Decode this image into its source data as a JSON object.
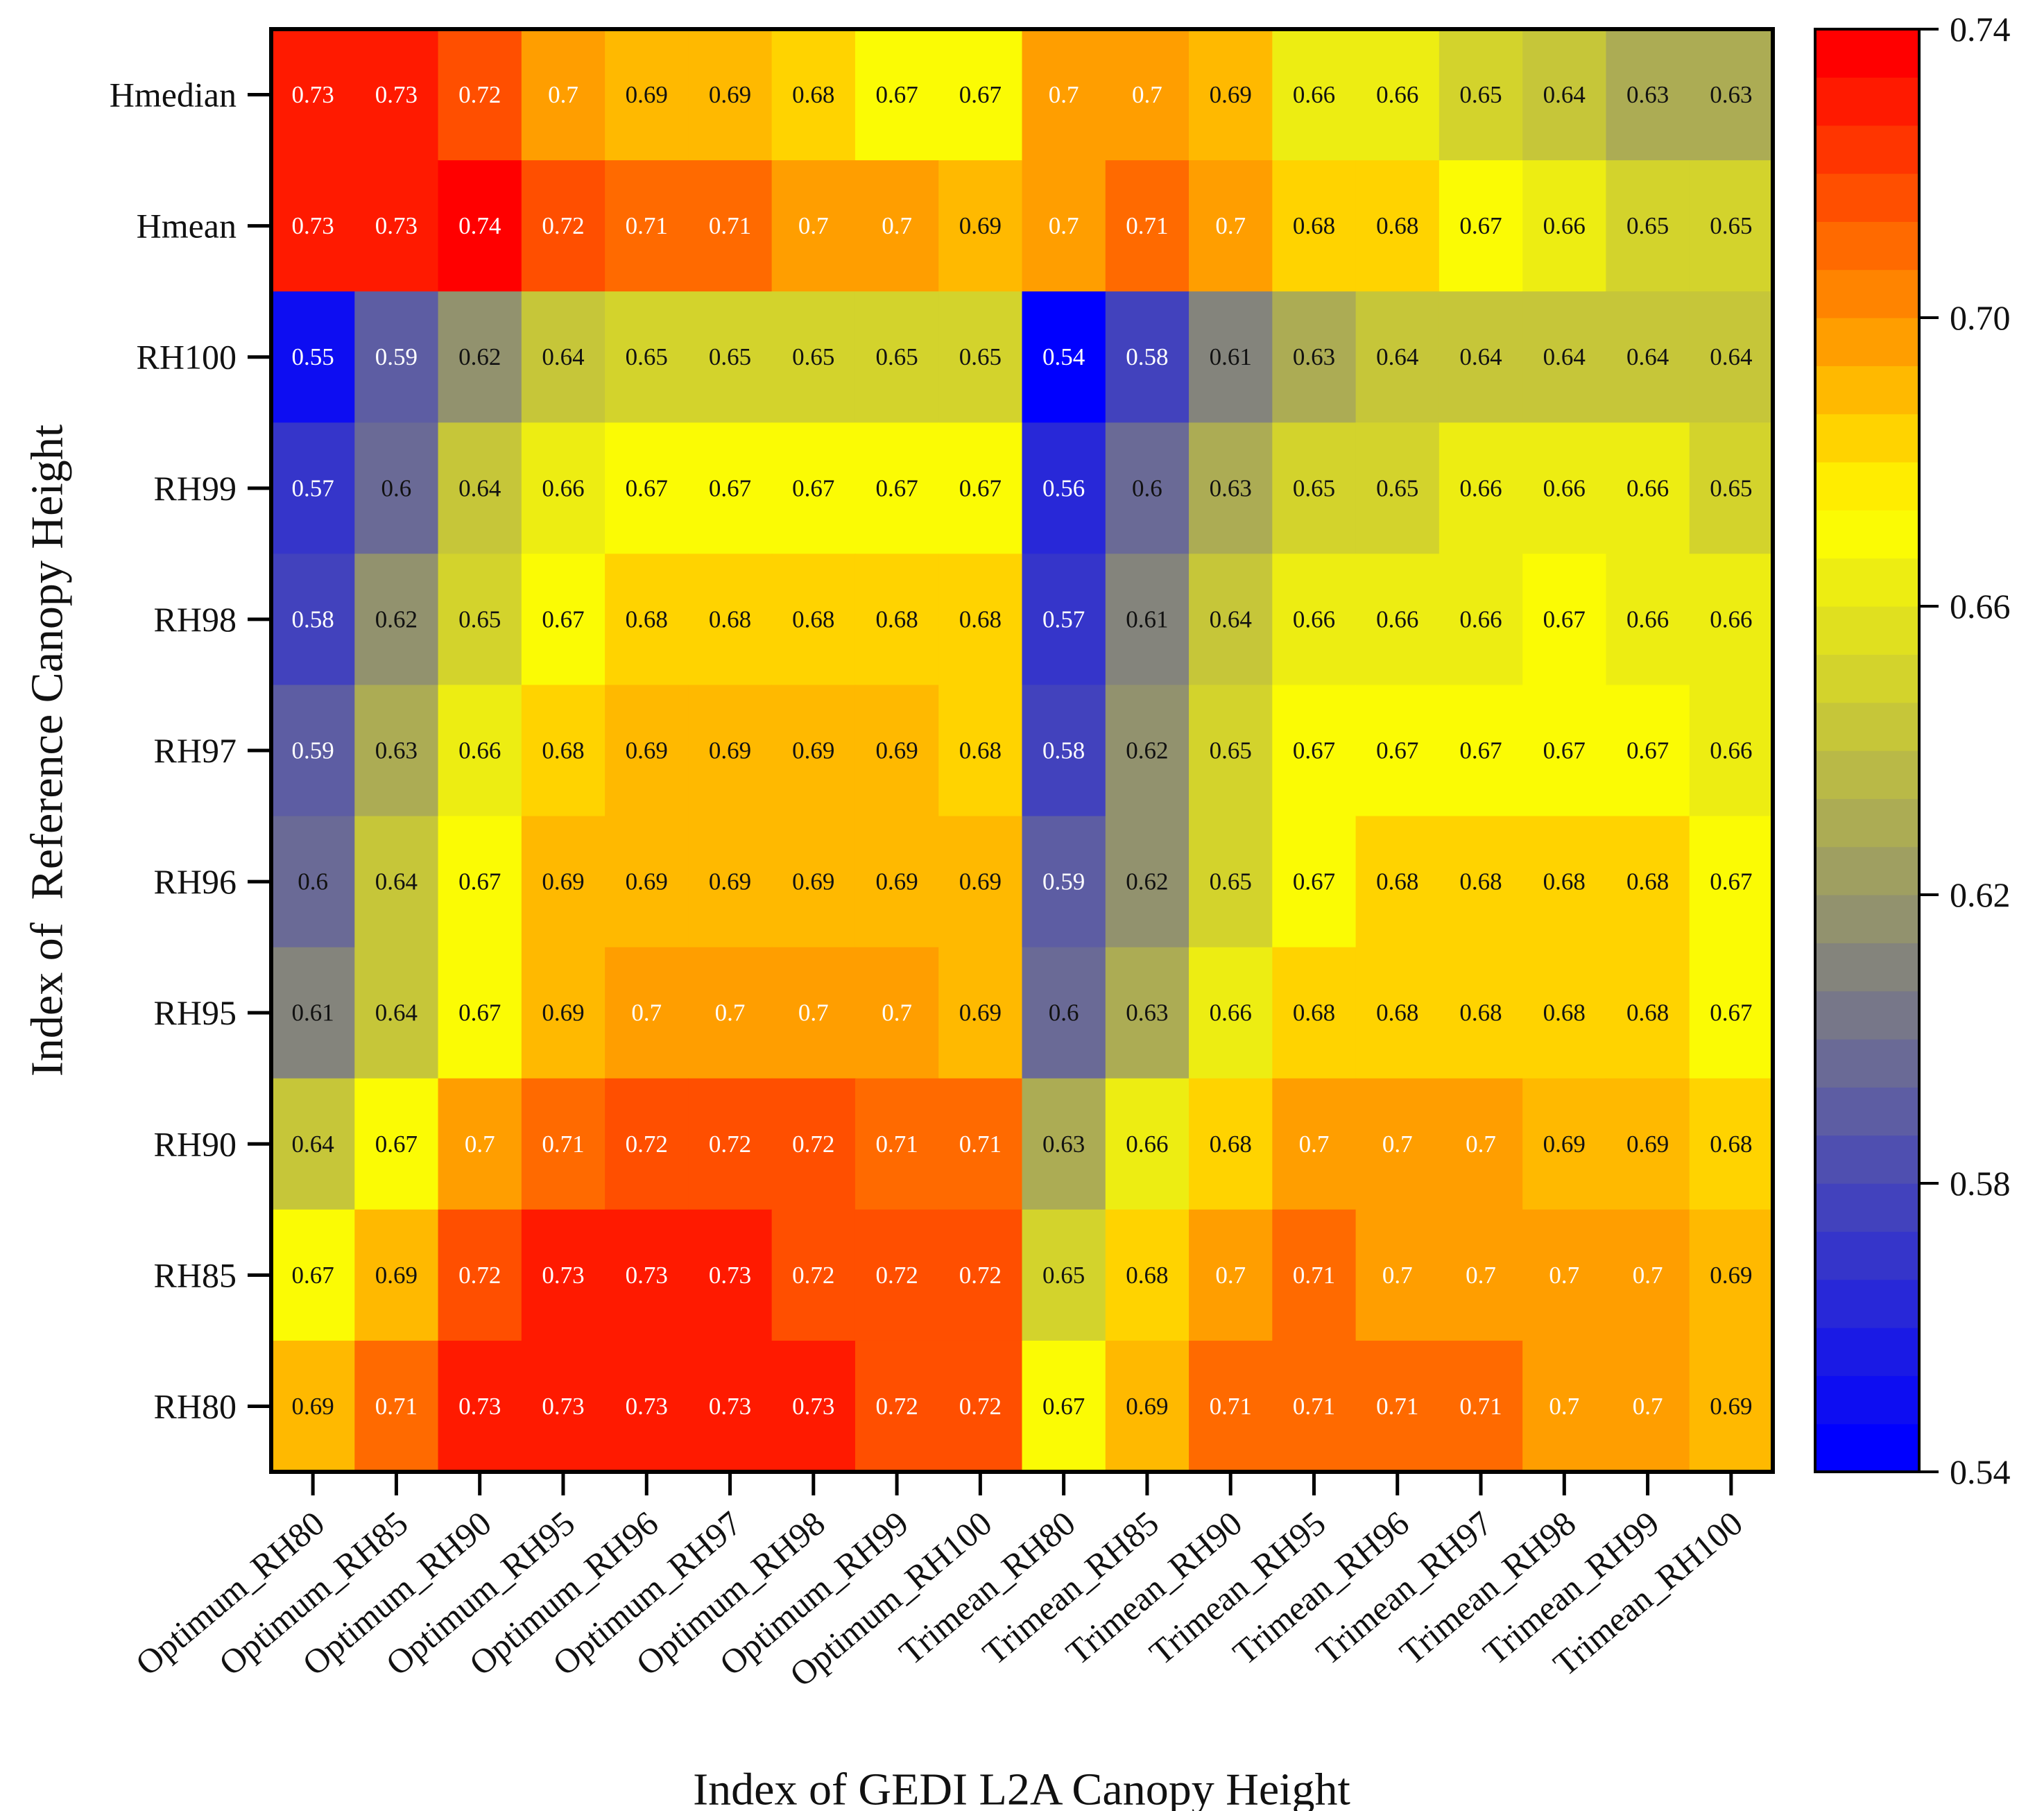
{
  "chart_data": {
    "type": "heatmap",
    "xlabel": "Index of GEDI L2A Canopy Height",
    "ylabel": "Index of  Reference Canopy Height",
    "x_categories": [
      "Optimum_RH80",
      "Optimum_RH85",
      "Optimum_RH90",
      "Optimum_RH95",
      "Optimum_RH96",
      "Optimum_RH97",
      "Optimum_RH98",
      "Optimum_RH99",
      "Optimum_RH100",
      "Trimean_RH80",
      "Trimean_RH85",
      "Trimean_RH90",
      "Trimean_RH95",
      "Trimean_RH96",
      "Trimean_RH97",
      "Trimean_RH98",
      "Trimean_RH99",
      "Trimean_RH100"
    ],
    "y_categories": [
      "Hmedian",
      "Hmean",
      "RH100",
      "RH99",
      "RH98",
      "RH97",
      "RH96",
      "RH95",
      "RH90",
      "RH85",
      "RH80"
    ],
    "values": [
      [
        0.73,
        0.73,
        0.72,
        0.7,
        0.69,
        0.69,
        0.68,
        0.67,
        0.67,
        0.7,
        0.7,
        0.69,
        0.66,
        0.66,
        0.65,
        0.64,
        0.63,
        0.63
      ],
      [
        0.73,
        0.73,
        0.74,
        0.72,
        0.71,
        0.71,
        0.7,
        0.7,
        0.69,
        0.7,
        0.71,
        0.7,
        0.68,
        0.68,
        0.67,
        0.66,
        0.65,
        0.65
      ],
      [
        0.55,
        0.59,
        0.62,
        0.64,
        0.65,
        0.65,
        0.65,
        0.65,
        0.65,
        0.54,
        0.58,
        0.61,
        0.63,
        0.64,
        0.64,
        0.64,
        0.64,
        0.64
      ],
      [
        0.57,
        0.6,
        0.64,
        0.66,
        0.67,
        0.67,
        0.67,
        0.67,
        0.67,
        0.56,
        0.6,
        0.63,
        0.65,
        0.65,
        0.66,
        0.66,
        0.66,
        0.65
      ],
      [
        0.58,
        0.62,
        0.65,
        0.67,
        0.68,
        0.68,
        0.68,
        0.68,
        0.68,
        0.57,
        0.61,
        0.64,
        0.66,
        0.66,
        0.66,
        0.67,
        0.66,
        0.66
      ],
      [
        0.59,
        0.63,
        0.66,
        0.68,
        0.69,
        0.69,
        0.69,
        0.69,
        0.68,
        0.58,
        0.62,
        0.65,
        0.67,
        0.67,
        0.67,
        0.67,
        0.67,
        0.66
      ],
      [
        0.6,
        0.64,
        0.67,
        0.69,
        0.69,
        0.69,
        0.69,
        0.69,
        0.69,
        0.59,
        0.62,
        0.65,
        0.67,
        0.68,
        0.68,
        0.68,
        0.68,
        0.67
      ],
      [
        0.61,
        0.64,
        0.67,
        0.69,
        0.7,
        0.7,
        0.7,
        0.7,
        0.69,
        0.6,
        0.63,
        0.66,
        0.68,
        0.68,
        0.68,
        0.68,
        0.68,
        0.67
      ],
      [
        0.64,
        0.67,
        0.7,
        0.71,
        0.72,
        0.72,
        0.72,
        0.71,
        0.71,
        0.63,
        0.66,
        0.68,
        0.7,
        0.7,
        0.7,
        0.69,
        0.69,
        0.68
      ],
      [
        0.67,
        0.69,
        0.72,
        0.73,
        0.73,
        0.73,
        0.72,
        0.72,
        0.72,
        0.65,
        0.68,
        0.7,
        0.71,
        0.7,
        0.7,
        0.7,
        0.7,
        0.69
      ],
      [
        0.69,
        0.71,
        0.73,
        0.73,
        0.73,
        0.73,
        0.73,
        0.72,
        0.72,
        0.67,
        0.69,
        0.71,
        0.71,
        0.71,
        0.71,
        0.7,
        0.7,
        0.69
      ]
    ],
    "value_labels": [
      [
        "0.73",
        "0.73",
        "0.72",
        "0.7",
        "0.69",
        "0.69",
        "0.68",
        "0.67",
        "0.67",
        "0.7",
        "0.7",
        "0.69",
        "0.66",
        "0.66",
        "0.65",
        "0.64",
        "0.63",
        "0.63"
      ],
      [
        "0.73",
        "0.73",
        "0.74",
        "0.72",
        "0.71",
        "0.71",
        "0.7",
        "0.7",
        "0.69",
        "0.7",
        "0.71",
        "0.7",
        "0.68",
        "0.68",
        "0.67",
        "0.66",
        "0.65",
        "0.65"
      ],
      [
        "0.55",
        "0.59",
        "0.62",
        "0.64",
        "0.65",
        "0.65",
        "0.65",
        "0.65",
        "0.65",
        "0.54",
        "0.58",
        "0.61",
        "0.63",
        "0.64",
        "0.64",
        "0.64",
        "0.64",
        "0.64"
      ],
      [
        "0.57",
        "0.6",
        "0.64",
        "0.66",
        "0.67",
        "0.67",
        "0.67",
        "0.67",
        "0.67",
        "0.56",
        "0.6",
        "0.63",
        "0.65",
        "0.65",
        "0.66",
        "0.66",
        "0.66",
        "0.65"
      ],
      [
        "0.58",
        "0.62",
        "0.65",
        "0.67",
        "0.68",
        "0.68",
        "0.68",
        "0.68",
        "0.68",
        "0.57",
        "0.61",
        "0.64",
        "0.66",
        "0.66",
        "0.66",
        "0.67",
        "0.66",
        "0.66"
      ],
      [
        "0.59",
        "0.63",
        "0.66",
        "0.68",
        "0.69",
        "0.69",
        "0.69",
        "0.69",
        "0.68",
        "0.58",
        "0.62",
        "0.65",
        "0.67",
        "0.67",
        "0.67",
        "0.67",
        "0.67",
        "0.66"
      ],
      [
        "0.6",
        "0.64",
        "0.67",
        "0.69",
        "0.69",
        "0.69",
        "0.69",
        "0.69",
        "0.69",
        "0.59",
        "0.62",
        "0.65",
        "0.67",
        "0.68",
        "0.68",
        "0.68",
        "0.68",
        "0.67"
      ],
      [
        "0.61",
        "0.64",
        "0.67",
        "0.69",
        "0.7",
        "0.7",
        "0.7",
        "0.7",
        "0.69",
        "0.6",
        "0.63",
        "0.66",
        "0.68",
        "0.68",
        "0.68",
        "0.68",
        "0.68",
        "0.67"
      ],
      [
        "0.64",
        "0.67",
        "0.7",
        "0.71",
        "0.72",
        "0.72",
        "0.72",
        "0.71",
        "0.71",
        "0.63",
        "0.66",
        "0.68",
        "0.7",
        "0.7",
        "0.7",
        "0.69",
        "0.69",
        "0.68"
      ],
      [
        "0.67",
        "0.69",
        "0.72",
        "0.73",
        "0.73",
        "0.73",
        "0.72",
        "0.72",
        "0.72",
        "0.65",
        "0.68",
        "0.7",
        "0.71",
        "0.7",
        "0.7",
        "0.7",
        "0.7",
        "0.69"
      ],
      [
        "0.69",
        "0.71",
        "0.73",
        "0.73",
        "0.73",
        "0.73",
        "0.73",
        "0.72",
        "0.72",
        "0.67",
        "0.69",
        "0.71",
        "0.71",
        "0.71",
        "0.71",
        "0.7",
        "0.7",
        "0.69"
      ]
    ],
    "colorbar": {
      "min": 0.54,
      "max": 0.74,
      "ticks": [
        "0.54",
        "0.58",
        "0.62",
        "0.66",
        "0.70",
        "0.74"
      ],
      "tick_values": [
        0.54,
        0.58,
        0.62,
        0.66,
        0.7,
        0.74
      ],
      "steps": 30,
      "colors": [
        "#0000ff",
        "#808080",
        "#ffff00",
        "#ff0000"
      ]
    },
    "dark_text_color": "#111111",
    "light_text_color": "#ffffff"
  }
}
